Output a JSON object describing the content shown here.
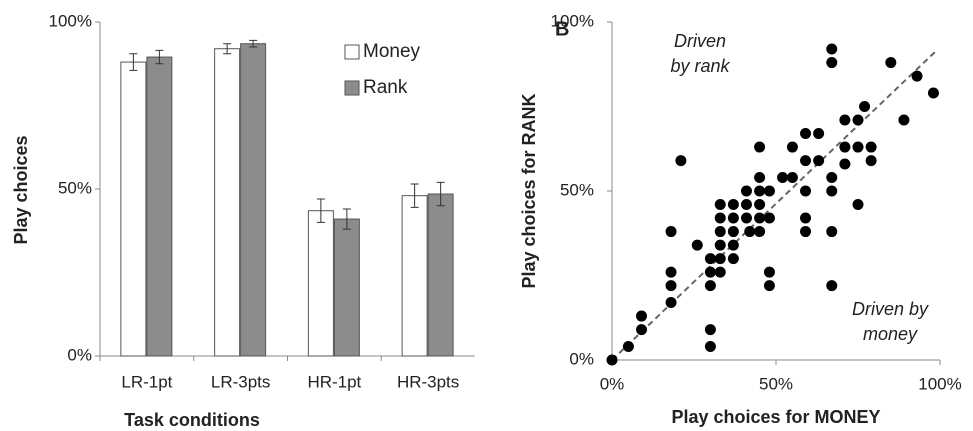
{
  "chart_data": [
    {
      "type": "bar",
      "x_label": "Task conditions",
      "y_label": "Play choices",
      "categories": [
        "LR-1pt",
        "LR-3pts",
        "HR-1pt",
        "HR-3pts"
      ],
      "series": [
        {
          "name": "Money",
          "color": "#ffffff",
          "values": [
            88,
            92,
            43.5,
            48
          ],
          "errors": [
            2.5,
            1.5,
            3.5,
            3.5
          ]
        },
        {
          "name": "Rank",
          "color": "#8c8c8c",
          "values": [
            89.5,
            93.5,
            41,
            48.5
          ],
          "errors": [
            2,
            1,
            3,
            3.5
          ]
        }
      ],
      "ylim": [
        0,
        100
      ],
      "yticks": [
        {
          "value": 0,
          "label": "0%"
        },
        {
          "value": 50,
          "label": "50%"
        },
        {
          "value": 100,
          "label": "100%"
        }
      ],
      "legend": "top-right"
    },
    {
      "type": "scatter",
      "panel": "B",
      "x_label": "Play choices for MONEY",
      "y_label": "Play choices for RANK",
      "annotations": [
        [
          "Driven",
          "by rank"
        ],
        [
          "Driven by",
          "money"
        ]
      ],
      "color": "#000000",
      "x": [
        0,
        5,
        9,
        9,
        18,
        18,
        18,
        18,
        21,
        26,
        30,
        30,
        30,
        30,
        30,
        33,
        33,
        33,
        33,
        33,
        33,
        37,
        37,
        37,
        37,
        37,
        41,
        41,
        41,
        42,
        45,
        45,
        45,
        45,
        45,
        45,
        48,
        48,
        48,
        48,
        52,
        55,
        55,
        59,
        59,
        59,
        59,
        59,
        63,
        63,
        67,
        67,
        67,
        67,
        71,
        71,
        71,
        67,
        67,
        75,
        75,
        75,
        77,
        79,
        79,
        85,
        89,
        93,
        98
      ],
      "y": [
        0,
        4,
        9,
        13,
        17,
        22,
        26,
        38,
        59,
        34,
        26,
        30,
        9,
        4,
        22,
        30,
        34,
        38,
        42,
        46,
        26,
        34,
        30,
        38,
        42,
        46,
        42,
        46,
        50,
        38,
        54,
        63,
        50,
        46,
        42,
        38,
        26,
        22,
        50,
        42,
        54,
        63,
        54,
        59,
        67,
        50,
        42,
        38,
        59,
        67,
        50,
        54,
        38,
        22,
        71,
        63,
        58,
        92,
        88,
        71,
        63,
        46,
        75,
        63,
        59,
        88,
        71,
        84,
        79
      ],
      "xlim": [
        0,
        100
      ],
      "xticks": [
        {
          "value": 0,
          "label": "0%"
        },
        {
          "value": 50,
          "label": "50%"
        },
        {
          "value": 100,
          "label": "100%"
        }
      ],
      "ylim": [
        0,
        100
      ],
      "yticks": [
        {
          "value": 0,
          "label": "0%"
        },
        {
          "value": 50,
          "label": "50%"
        },
        {
          "value": 100,
          "label": "100%"
        }
      ],
      "reference_line": "dashed"
    }
  ]
}
